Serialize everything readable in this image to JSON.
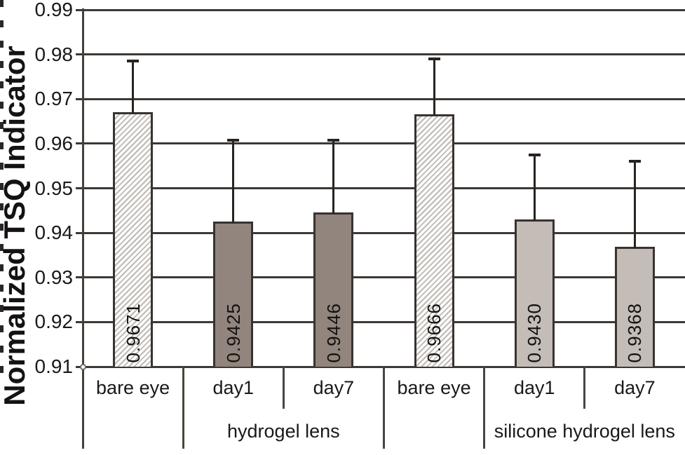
{
  "chart_data": {
    "type": "bar",
    "title": "",
    "xlabel": "",
    "ylabel": "Normalized TSQ Indicator",
    "ylim": [
      0.91,
      0.99
    ],
    "ytick_step": 0.01,
    "ytick_labels": [
      "0.99",
      "0.98",
      "0.97",
      "0.96",
      "0.95",
      "0.94",
      "0.93",
      "0.92",
      "0.91"
    ],
    "grid": "horizontal",
    "legend": "none",
    "categories": [
      "bare eye",
      "day1",
      "day7",
      "bare eye",
      "day1",
      "day7"
    ],
    "group_labels": [
      {
        "label": "hydrogel lens",
        "start_slot": 1,
        "end_slot": 2
      },
      {
        "label": "silicone hydrogel lens",
        "start_slot": 4,
        "end_slot": 5
      }
    ],
    "bars": [
      {
        "category": "bare eye",
        "group": "",
        "value": 0.9671,
        "value_label": "0.9671",
        "error_top": 0.9785,
        "style": "hatched"
      },
      {
        "category": "day1",
        "group": "hydrogel lens",
        "value": 0.9425,
        "value_label": "0.9425",
        "error_top": 0.9608,
        "style": "solid-dark"
      },
      {
        "category": "day7",
        "group": "hydrogel lens",
        "value": 0.9446,
        "value_label": "0.9446",
        "error_top": 0.9608,
        "style": "solid-dark"
      },
      {
        "category": "bare eye",
        "group": "",
        "value": 0.9666,
        "value_label": "0.9666",
        "error_top": 0.979,
        "style": "hatched"
      },
      {
        "category": "day1",
        "group": "silicone hydrogel lens",
        "value": 0.943,
        "value_label": "0.9430",
        "error_top": 0.9575,
        "style": "solid-light"
      },
      {
        "category": "day7",
        "group": "silicone hydrogel lens",
        "value": 0.9368,
        "value_label": "0.9368",
        "error_top": 0.956,
        "style": "solid-light"
      }
    ],
    "axis_separators": [
      {
        "boundary_index": 1,
        "full_height": true
      },
      {
        "boundary_index": 2,
        "full_height": false
      },
      {
        "boundary_index": 3,
        "full_height": true
      },
      {
        "boundary_index": 4,
        "full_height": true
      },
      {
        "boundary_index": 5,
        "full_height": false
      }
    ],
    "colors": {
      "background": "#ffffff",
      "grid_line": "#3e3835",
      "bar_border": "#383231",
      "bar_solid_dark": "#92857e",
      "bar_solid_light": "#c4bcb6",
      "bar_hatch_line": "#c0b9b3",
      "bar_hatch_bg": "#fdfdfd",
      "error_bar": "#272421",
      "text": "#1b1918"
    }
  }
}
